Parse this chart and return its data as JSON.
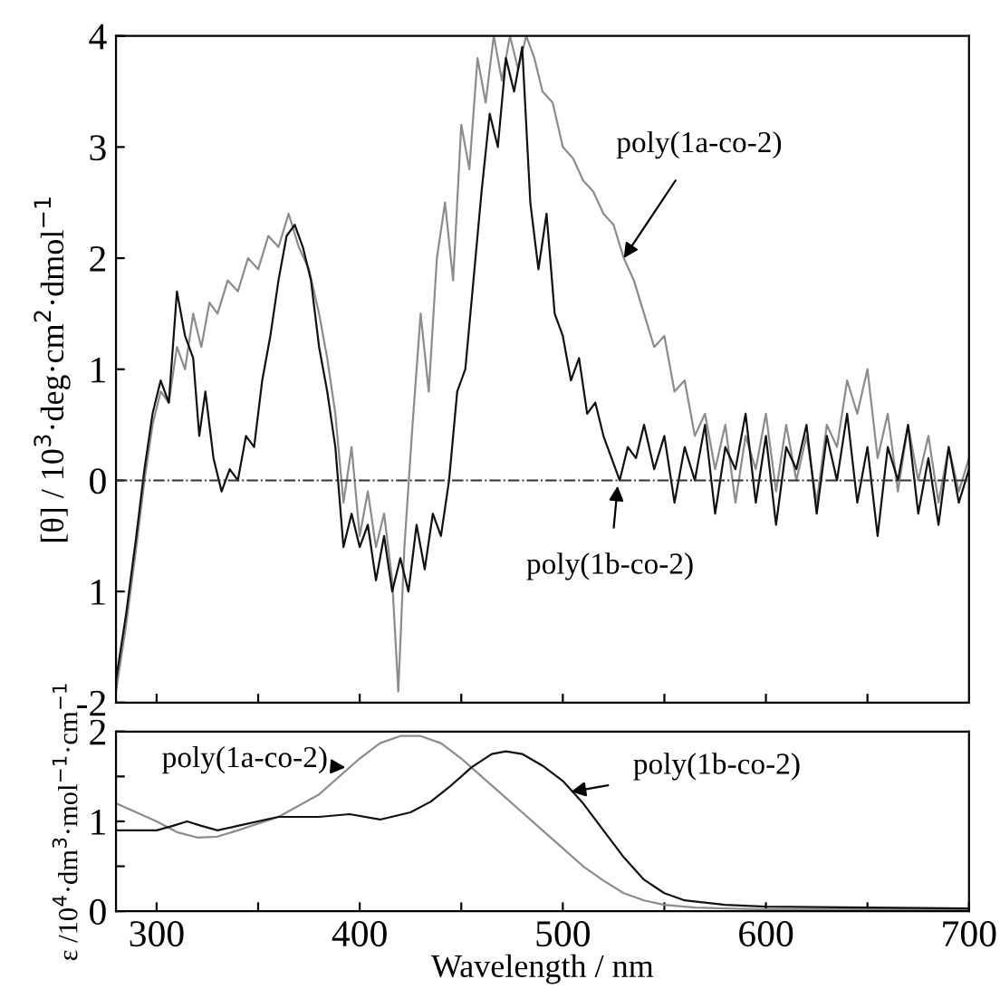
{
  "chart_data": [
    {
      "type": "line",
      "ylabel": "[θ] / 10$^{3}$·deg·cm$^{2}$·dmol$^{−1}$",
      "xlim": [
        280,
        700
      ],
      "xticks": [
        {
          "value": 300,
          "label": null
        },
        {
          "value": 350,
          "label": null
        },
        {
          "value": 400,
          "label": null
        },
        {
          "value": 450,
          "label": null
        },
        {
          "value": 500,
          "label": null
        },
        {
          "value": 550,
          "label": null
        },
        {
          "value": 600,
          "label": null
        },
        {
          "value": 650,
          "label": null
        }
      ],
      "ylim": [
        -2,
        4
      ],
      "yticks": [
        {
          "value": -2,
          "label": "-2"
        },
        {
          "value": -1,
          "label": "1"
        },
        0,
        1,
        2,
        3,
        4
      ],
      "tick_labels": "y",
      "ref_lines": [
        {
          "axis": "y",
          "value": 0,
          "line_style": "dotted",
          "color": "#333333"
        }
      ],
      "annotations": [
        {
          "text": "poly(1a-co-2)",
          "x": 530,
          "y": 2.0
        },
        {
          "text": "poly(1b-co-2)",
          "x": 527,
          "y": -0.05
        }
      ],
      "series": [
        {
          "color": "#8c8c8c",
          "x": [
            280,
            285,
            290,
            294,
            298,
            302,
            306,
            310,
            314,
            318,
            322,
            326,
            330,
            335,
            340,
            345,
            350,
            355,
            360,
            365,
            370,
            375,
            380,
            384,
            388,
            392,
            396,
            400,
            404,
            408,
            412,
            416,
            419,
            422,
            426,
            430,
            434,
            438,
            442,
            446,
            450,
            454,
            458,
            462,
            466,
            470,
            474,
            478,
            482,
            486,
            490,
            495,
            500,
            505,
            510,
            515,
            520,
            525,
            530,
            535,
            540,
            545,
            550,
            555,
            560,
            565,
            570,
            575,
            580,
            585,
            590,
            595,
            600,
            605,
            610,
            615,
            620,
            625,
            630,
            635,
            640,
            645,
            650,
            655,
            660,
            665,
            670,
            675,
            680,
            685,
            690,
            695,
            700
          ],
          "values": [
            -1.9,
            -1.3,
            -0.6,
            0.0,
            0.5,
            0.8,
            0.7,
            1.2,
            1.0,
            1.5,
            1.2,
            1.6,
            1.5,
            1.8,
            1.7,
            2.0,
            1.9,
            2.2,
            2.1,
            2.4,
            2.1,
            1.9,
            1.5,
            1.1,
            0.6,
            -0.2,
            0.3,
            -0.5,
            -0.1,
            -0.6,
            -0.3,
            -0.9,
            -1.9,
            -0.6,
            0.5,
            1.5,
            0.8,
            2.0,
            2.5,
            1.8,
            3.2,
            2.8,
            3.8,
            3.4,
            4.0,
            3.6,
            4.0,
            3.7,
            4.0,
            3.8,
            3.5,
            3.4,
            3.0,
            2.9,
            2.7,
            2.6,
            2.4,
            2.3,
            2.0,
            1.8,
            1.5,
            1.2,
            1.3,
            0.8,
            0.9,
            0.4,
            0.6,
            0.1,
            0.5,
            -0.2,
            0.4,
            0.1,
            0.6,
            -0.1,
            0.5,
            0.0,
            0.4,
            -0.2,
            0.5,
            0.3,
            0.9,
            0.6,
            1.0,
            0.2,
            0.6,
            -0.1,
            0.5,
            0.0,
            0.4,
            -0.2,
            0.3,
            -0.1,
            0.2
          ]
        },
        {
          "color": "#111111",
          "x": [
            280,
            285,
            290,
            294,
            298,
            302,
            306,
            310,
            314,
            318,
            321,
            324,
            328,
            332,
            336,
            340,
            344,
            348,
            352,
            356,
            360,
            364,
            368,
            372,
            376,
            380,
            384,
            388,
            392,
            396,
            400,
            404,
            408,
            412,
            416,
            420,
            424,
            428,
            432,
            436,
            440,
            444,
            448,
            452,
            456,
            460,
            464,
            468,
            472,
            476,
            480,
            484,
            488,
            492,
            496,
            500,
            504,
            508,
            512,
            516,
            520,
            524,
            528,
            532,
            536,
            540,
            545,
            550,
            555,
            560,
            565,
            570,
            575,
            580,
            585,
            590,
            595,
            600,
            605,
            610,
            615,
            620,
            625,
            630,
            635,
            640,
            645,
            650,
            655,
            660,
            665,
            670,
            675,
            680,
            685,
            690,
            695,
            700
          ],
          "values": [
            -1.8,
            -1.2,
            -0.5,
            0.1,
            0.6,
            0.9,
            0.7,
            1.7,
            1.3,
            1.1,
            0.4,
            0.8,
            0.2,
            -0.1,
            0.1,
            0.0,
            0.4,
            0.3,
            0.9,
            1.3,
            1.8,
            2.2,
            2.3,
            2.1,
            1.8,
            1.2,
            0.8,
            0.3,
            -0.6,
            -0.3,
            -0.6,
            -0.4,
            -0.9,
            -0.5,
            -1.0,
            -0.7,
            -1.0,
            -0.4,
            -0.8,
            -0.3,
            -0.5,
            0.0,
            0.8,
            1.0,
            1.8,
            2.6,
            3.3,
            3.0,
            3.8,
            3.5,
            3.9,
            2.5,
            1.9,
            2.4,
            1.5,
            1.3,
            0.9,
            1.1,
            0.6,
            0.7,
            0.4,
            0.2,
            0.0,
            0.3,
            0.2,
            0.5,
            0.1,
            0.4,
            -0.2,
            0.3,
            0.0,
            0.5,
            -0.3,
            0.3,
            0.1,
            0.6,
            -0.2,
            0.4,
            -0.4,
            0.3,
            0.1,
            0.5,
            -0.3,
            0.4,
            0.0,
            0.6,
            -0.2,
            0.3,
            -0.5,
            0.3,
            0.0,
            0.5,
            -0.3,
            0.2,
            -0.4,
            0.3,
            -0.2,
            0.1
          ]
        }
      ]
    },
    {
      "type": "line",
      "xlabel": "Wavelength / nm",
      "ylabel": "ε /10$^{4}$·dm$^{3}$·mol$^{−1}$·cm$^{−1}$",
      "xlim": [
        280,
        700
      ],
      "xticks": [
        300,
        {
          "value": 350,
          "label": null
        },
        400,
        {
          "value": 450,
          "label": null
        },
        500,
        {
          "value": 550,
          "label": null
        },
        600,
        {
          "value": 650,
          "label": null
        },
        700
      ],
      "ylim": [
        0,
        2
      ],
      "yticks": [
        0,
        {
          "value": 0.5,
          "label": null
        },
        1,
        {
          "value": 1.5,
          "label": null
        },
        2
      ],
      "annotations": [
        {
          "text": "poly(1a-co-2)",
          "x": 393,
          "y": 1.6
        },
        {
          "text": "poly(1b-co-2)",
          "x": 504,
          "y": 1.33
        }
      ],
      "series": [
        {
          "color": "#8c8c8c",
          "x": [
            280,
            290,
            300,
            310,
            320,
            330,
            340,
            360,
            380,
            400,
            410,
            420,
            430,
            440,
            450,
            460,
            470,
            480,
            490,
            500,
            510,
            520,
            530,
            540,
            550,
            565,
            580,
            600,
            650,
            700
          ],
          "values": [
            1.2,
            1.1,
            1.0,
            0.88,
            0.82,
            0.83,
            0.9,
            1.05,
            1.3,
            1.7,
            1.87,
            1.95,
            1.95,
            1.87,
            1.7,
            1.5,
            1.3,
            1.1,
            0.9,
            0.7,
            0.5,
            0.34,
            0.2,
            0.12,
            0.07,
            0.04,
            0.03,
            0.02,
            0.02,
            0.02
          ]
        },
        {
          "color": "#111111",
          "x": [
            280,
            290,
            300,
            308,
            315,
            322,
            330,
            340,
            360,
            380,
            395,
            410,
            425,
            435,
            445,
            455,
            465,
            472,
            480,
            490,
            500,
            510,
            520,
            530,
            540,
            550,
            560,
            580,
            600,
            650,
            700
          ],
          "values": [
            0.9,
            0.9,
            0.9,
            0.95,
            1.0,
            0.95,
            0.9,
            0.95,
            1.05,
            1.05,
            1.08,
            1.02,
            1.1,
            1.22,
            1.4,
            1.6,
            1.75,
            1.78,
            1.75,
            1.62,
            1.45,
            1.2,
            0.9,
            0.6,
            0.35,
            0.2,
            0.12,
            0.07,
            0.05,
            0.04,
            0.03
          ]
        }
      ]
    }
  ]
}
